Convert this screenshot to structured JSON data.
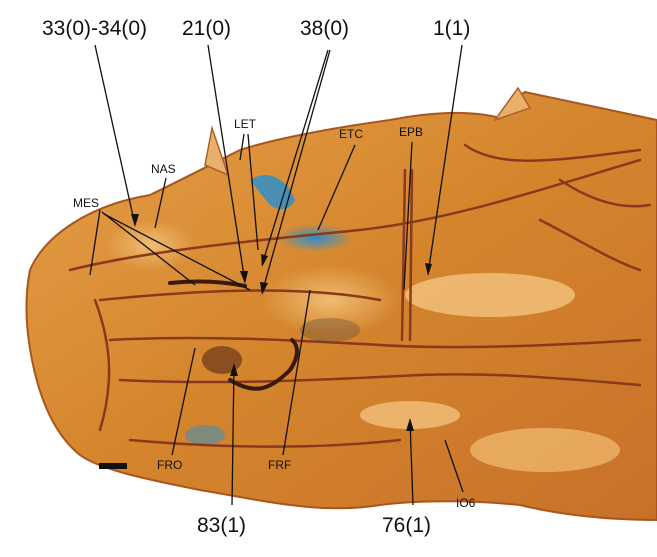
{
  "figure": {
    "character_labels": [
      "33(0)-34(0)",
      "21(0)",
      "38(0)",
      "1(1)",
      "83(1)",
      "76(1)"
    ],
    "structure_labels": [
      "LET",
      "ETC",
      "EPB",
      "NAS",
      "MES",
      "FRO",
      "FRF",
      "IO6"
    ],
    "colors": {
      "bone": "#d98a2e",
      "bone_light": "#eaa24a",
      "suture": "#8a3a1c",
      "cartilage_blue": "#2f8fc8",
      "background": "#ffffff",
      "label": "#111111"
    }
  }
}
